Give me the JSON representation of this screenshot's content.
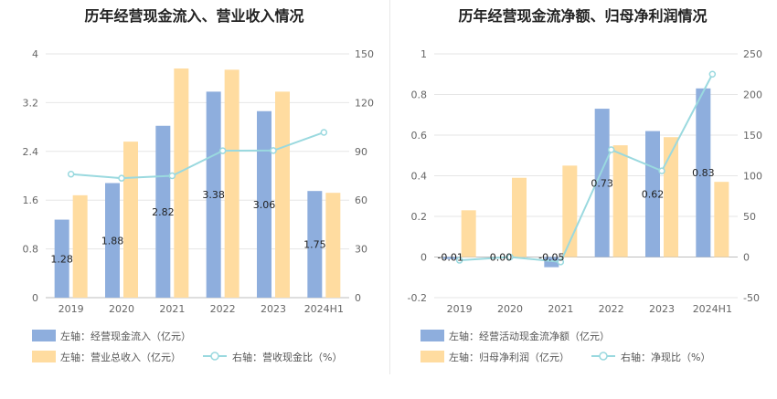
{
  "chart_data": [
    {
      "type": "bar",
      "title": "历年经营现金流入、营业收入情况",
      "categories": [
        "2019",
        "2020",
        "2021",
        "2022",
        "2023",
        "2024H1"
      ],
      "left_axis": {
        "min": 0,
        "max": 4,
        "ticks": [
          "0",
          "0.8",
          "1.6",
          "2.4",
          "3.2",
          "4"
        ]
      },
      "right_axis": {
        "min": 0,
        "max": 150,
        "ticks": [
          "0",
          "30",
          "60",
          "90",
          "120",
          "150"
        ]
      },
      "series": [
        {
          "name": "左轴：经营现金流入（亿元）",
          "kind": "bar",
          "axis": "left",
          "color": "#8eaedd",
          "values": [
            1.28,
            1.88,
            2.82,
            3.38,
            3.06,
            1.75
          ],
          "labels": [
            "1.28",
            "1.88",
            "2.82",
            "3.38",
            "3.06",
            "1.75"
          ]
        },
        {
          "name": "左轴：营业总收入（亿元）",
          "kind": "bar",
          "axis": "left",
          "color": "#ffdca0",
          "values": [
            1.68,
            2.56,
            3.76,
            3.74,
            3.38,
            1.72
          ]
        },
        {
          "name": "右轴：营收现金比（%）",
          "kind": "line",
          "axis": "right",
          "color": "#9ad9df",
          "values": [
            76,
            73.5,
            75,
            90.4,
            90.5,
            101.7
          ]
        }
      ],
      "grid": true,
      "legend": "bottom-left"
    },
    {
      "type": "bar",
      "title": "历年经营现金流净额、归母净利润情况",
      "categories": [
        "2019",
        "2020",
        "2021",
        "2022",
        "2023",
        "2024H1"
      ],
      "left_axis": {
        "min": -0.2,
        "max": 1,
        "ticks": [
          "-0.2",
          "0",
          "0.2",
          "0.4",
          "0.6",
          "0.8",
          "1"
        ]
      },
      "right_axis": {
        "min": -50,
        "max": 250,
        "ticks": [
          "-50",
          "0",
          "50",
          "100",
          "150",
          "200",
          "250"
        ]
      },
      "series": [
        {
          "name": "左轴：经营活动现金流净额（亿元）",
          "kind": "bar",
          "axis": "left",
          "color": "#8eaedd",
          "values": [
            -0.01,
            0.0,
            -0.05,
            0.73,
            0.62,
            0.83
          ],
          "labels": [
            "-0.01",
            "0.00",
            "-0.05",
            "0.73",
            "0.62",
            "0.83"
          ]
        },
        {
          "name": "左轴：归母净利润（亿元）",
          "kind": "bar",
          "axis": "left",
          "color": "#ffdca0",
          "values": [
            0.23,
            0.39,
            0.45,
            0.55,
            0.59,
            0.37
          ]
        },
        {
          "name": "右轴：净现比（%）",
          "kind": "line",
          "axis": "right",
          "color": "#9ad9df",
          "values": [
            -4,
            0,
            -6,
            132,
            106,
            225
          ]
        }
      ],
      "grid": true,
      "legend": "bottom-left"
    }
  ]
}
